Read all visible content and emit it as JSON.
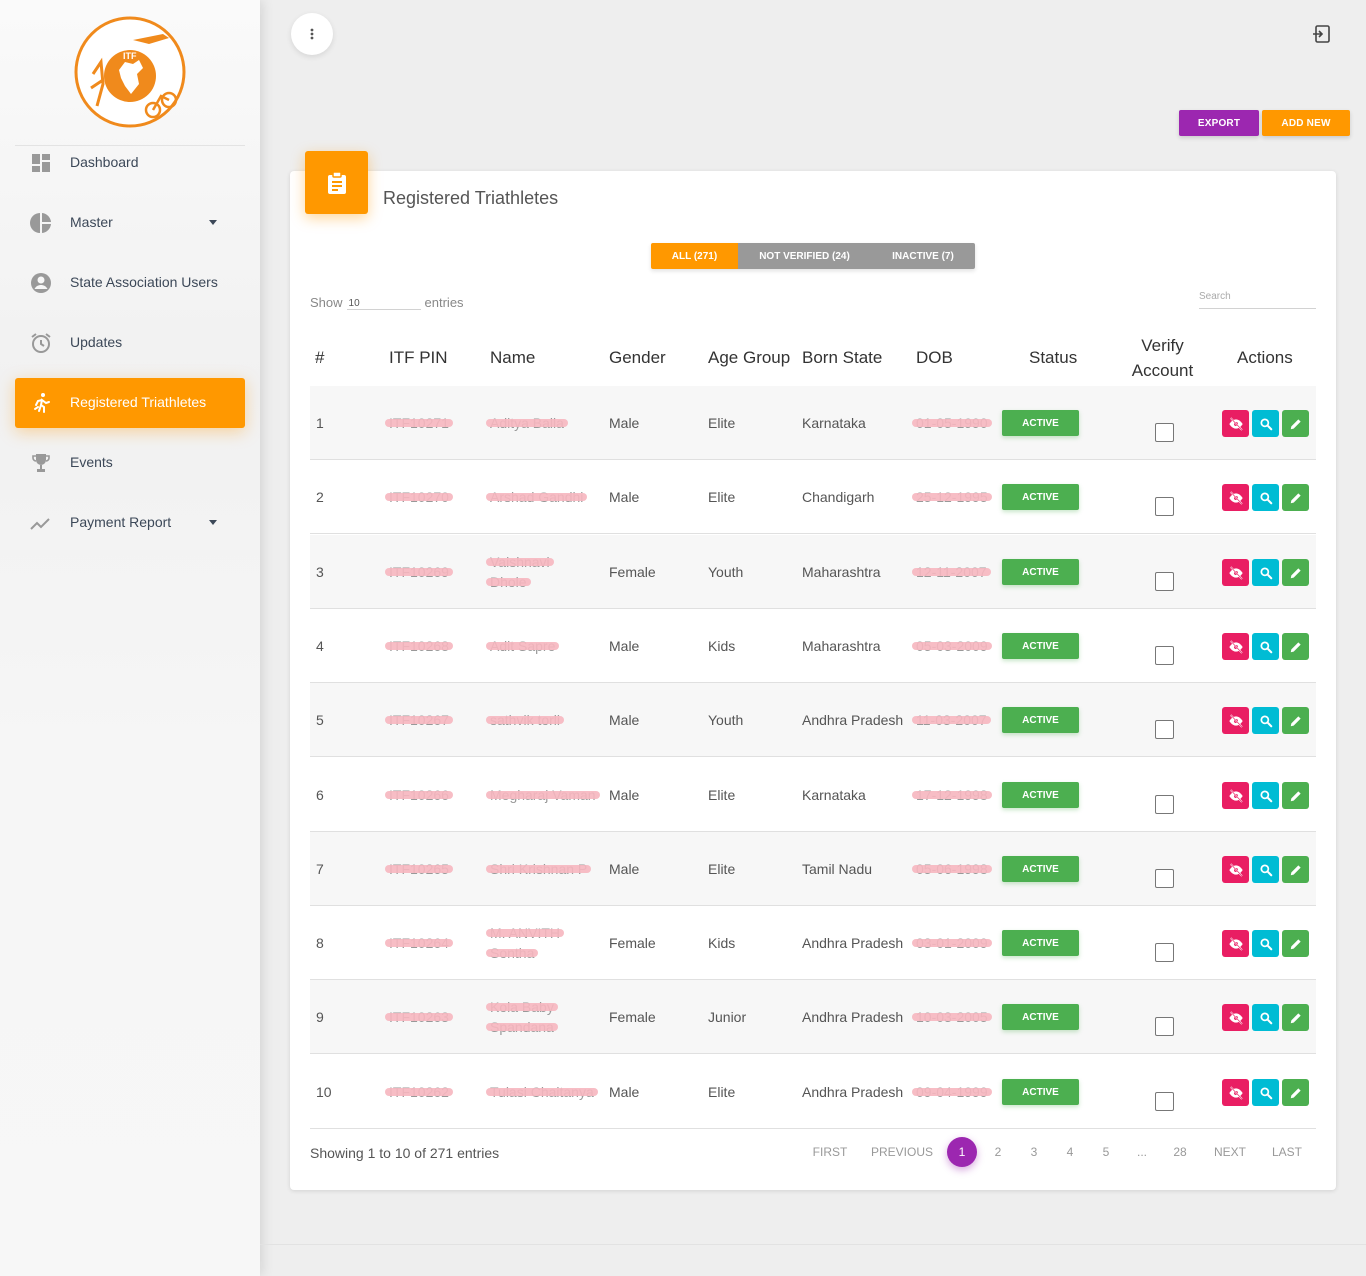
{
  "brand": {
    "logo_text": "ITF",
    "accent": "#ff9800"
  },
  "sidebar": {
    "items": [
      {
        "label": "Dashboard",
        "icon": "dashboard-icon",
        "has_caret": false,
        "active": false
      },
      {
        "label": "Master",
        "icon": "pie-chart-icon",
        "has_caret": true,
        "active": false
      },
      {
        "label": "State Association Users",
        "icon": "user-circle-icon",
        "has_caret": false,
        "active": false
      },
      {
        "label": "Updates",
        "icon": "alarm-clock-icon",
        "has_caret": false,
        "active": false
      },
      {
        "label": "Registered Triathletes",
        "icon": "runner-icon",
        "has_caret": false,
        "active": true
      },
      {
        "label": "Events",
        "icon": "trophy-icon",
        "has_caret": false,
        "active": false
      },
      {
        "label": "Payment Report",
        "icon": "trending-up-icon",
        "has_caret": true,
        "active": false
      }
    ]
  },
  "toolbar": {
    "export_label": "EXPORT",
    "add_label": "ADD NEW"
  },
  "card": {
    "title": "Registered Triathletes",
    "icon": "clipboard-icon"
  },
  "filters": {
    "all": "ALL (271)",
    "not_verified": "NOT VERIFIED (24)",
    "inactive": "INACTIVE (7)"
  },
  "controls": {
    "show": "Show",
    "entries_value": "10",
    "entries": "entries",
    "search_placeholder": "Search"
  },
  "table": {
    "headers": {
      "num": "#",
      "pin": "ITF PIN",
      "name": "Name",
      "gender": "Gender",
      "age": "Age Group",
      "state": "Born State",
      "dob": "DOB",
      "status": "Status",
      "verify_1": "Verify",
      "verify_2": "Account",
      "actions": "Actions"
    },
    "rows": [
      {
        "num": "1",
        "pin": "ITF10271",
        "name1": "Aditya Balla",
        "name2": "",
        "gender": "Male",
        "age": "Elite",
        "state": "Karnataka",
        "dob": "01-05-1990",
        "status": "ACTIVE"
      },
      {
        "num": "2",
        "pin": "ITF10270",
        "name1": "Arshad Gandhi",
        "name2": "",
        "gender": "Male",
        "age": "Elite",
        "state": "Chandigarh",
        "dob": "25-12-1995",
        "status": "ACTIVE"
      },
      {
        "num": "3",
        "pin": "ITF10269",
        "name1": "Vaishnavi",
        "name2": "Dhole",
        "gender": "Female",
        "age": "Youth",
        "state": "Maharashtra",
        "dob": "12-11-2007",
        "status": "ACTIVE"
      },
      {
        "num": "4",
        "pin": "ITF10268",
        "name1": "Adit Sapre",
        "name2": "",
        "gender": "Male",
        "age": "Kids",
        "state": "Maharashtra",
        "dob": "05-03-2009",
        "status": "ACTIVE"
      },
      {
        "num": "5",
        "pin": "ITF10267",
        "name1": "sathvik torli",
        "name2": "",
        "gender": "Male",
        "age": "Youth",
        "state": "Andhra Pradesh",
        "dob": "11-03-2007",
        "status": "ACTIVE"
      },
      {
        "num": "6",
        "pin": "ITF10266",
        "name1": "Megharaj Vaman",
        "name2": "",
        "gender": "Male",
        "age": "Elite",
        "state": "Karnataka",
        "dob": "17-12-1998",
        "status": "ACTIVE"
      },
      {
        "num": "7",
        "pin": "ITF10265",
        "name1": "Shri Krishnan P",
        "name2": "",
        "gender": "Male",
        "age": "Elite",
        "state": "Tamil Nadu",
        "dob": "05-06-1998",
        "status": "ACTIVE"
      },
      {
        "num": "8",
        "pin": "ITF10264",
        "name1": "M. ANVITH",
        "name2": "Sontha",
        "gender": "Female",
        "age": "Kids",
        "state": "Andhra Pradesh",
        "dob": "03-01-2009",
        "status": "ACTIVE"
      },
      {
        "num": "9",
        "pin": "ITF10263",
        "name1": "Kola Baby",
        "name2": "Spandana",
        "gender": "Female",
        "age": "Junior",
        "state": "Andhra Pradesh",
        "dob": "10-03-2005",
        "status": "ACTIVE"
      },
      {
        "num": "10",
        "pin": "ITF10262",
        "name1": "Tulasi Chaitanya",
        "name2": "",
        "gender": "Male",
        "age": "Elite",
        "state": "Andhra Pradesh",
        "dob": "09-04-1999",
        "status": "ACTIVE"
      }
    ]
  },
  "footer": {
    "info": "Showing 1 to 10 of 271 entries",
    "first": "FIRST",
    "previous": "PREVIOUS",
    "pages": [
      "1",
      "2",
      "3",
      "4",
      "5",
      "...",
      "28"
    ],
    "next": "NEXT",
    "last": "LAST"
  }
}
